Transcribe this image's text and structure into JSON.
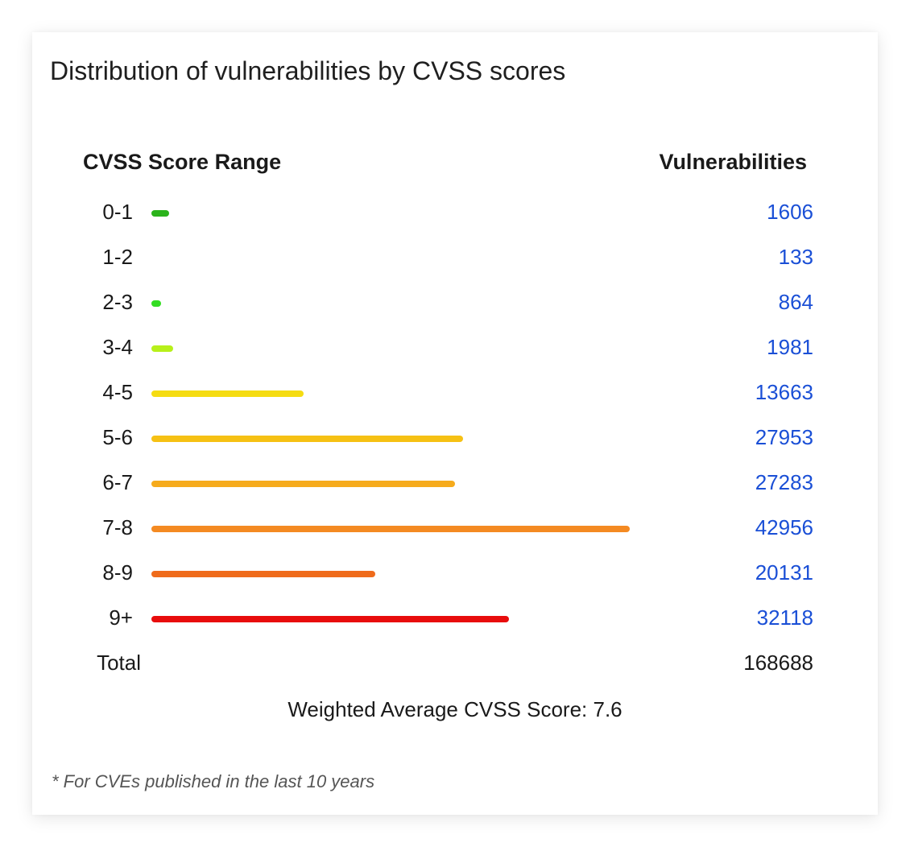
{
  "chart_data": {
    "type": "bar",
    "title": "Distribution of vulnerabilities by CVSS scores",
    "column_headers": {
      "range": "CVSS Score Range",
      "count": "Vulnerabilities"
    },
    "categories": [
      "0-1",
      "1-2",
      "2-3",
      "3-4",
      "4-5",
      "5-6",
      "6-7",
      "7-8",
      "8-9",
      "9+"
    ],
    "values": [
      1606,
      133,
      864,
      1981,
      13663,
      27953,
      27283,
      42956,
      20131,
      32118
    ],
    "value_labels": [
      "1606",
      "133",
      "864",
      "1981",
      "13663",
      "27953",
      "27283",
      "42956",
      "20131",
      "32118"
    ],
    "colors": [
      "#2bb31b",
      "#2bb31b",
      "#33dd22",
      "#b7f01a",
      "#f5dc12",
      "#f6c114",
      "#f6ab1c",
      "#f48a22",
      "#ef6b1b",
      "#e80c0c"
    ],
    "max_value": 42956,
    "total": {
      "label": "Total",
      "value": "168688"
    },
    "weighted_average": "Weighted Average CVSS Score: 7.6",
    "footnote": "* For CVEs published in the last 10 years"
  }
}
